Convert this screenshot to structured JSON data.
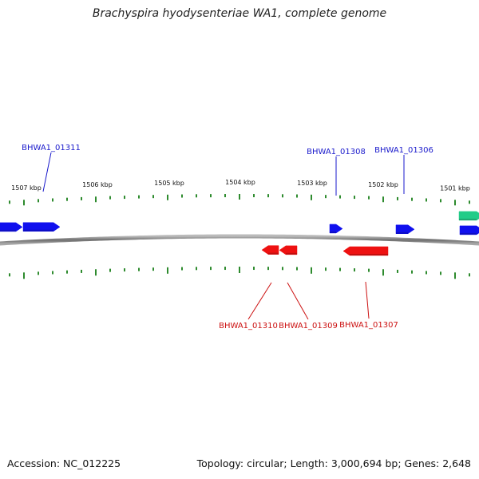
{
  "title": "Brachyspira hyodysenteriae WA1, complete genome",
  "accession": "Accession: NC_012225",
  "summary": "Topology: circular; Length: 3,000,694 bp; Genes: 2,648",
  "colors": {
    "forward": "#1010ee",
    "reverse": "#ee1111",
    "other": "#22cc88",
    "backbone": "#888888",
    "ticks": "#2e8b2e",
    "forward_label": "#1a1acc",
    "reverse_label": "#cc1111"
  },
  "scale": {
    "unit": "kbp",
    "labels": [
      "1507 kbp",
      "1506 kbp",
      "1505 kbp",
      "1504 kbp",
      "1503 kbp",
      "1502 kbp",
      "1501 kbp"
    ]
  },
  "genes_forward": [
    {
      "name": "BHWA1_01311",
      "labeled": true
    },
    {
      "name": "BHWA1_01308",
      "labeled": true
    },
    {
      "name": "BHWA1_01306",
      "labeled": true
    }
  ],
  "genes_reverse": [
    {
      "name": "BHWA1_01310",
      "labeled": true
    },
    {
      "name": "BHWA1_01309",
      "labeled": true
    },
    {
      "name": "BHWA1_01307",
      "labeled": true
    }
  ]
}
